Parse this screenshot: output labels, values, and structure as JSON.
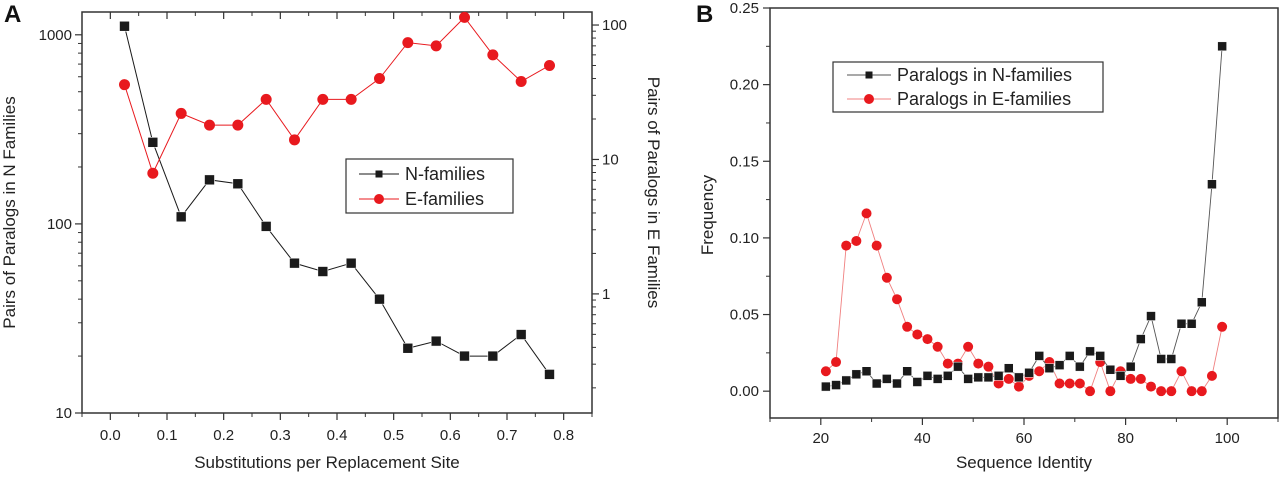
{
  "chart_data": [
    {
      "panel": "A",
      "type": "line",
      "title": "",
      "xlabel": "Substitutions per Replacement Site",
      "ylabel": "Pairs of Paralogs in N Families",
      "y2label": "Pairs of Paralogs in E Families",
      "xlim": [
        -0.05,
        0.85
      ],
      "ylim": [
        10,
        1320
      ],
      "yscale": "log",
      "y2lim": [
        0.13,
        125
      ],
      "y2scale": "log",
      "xticks": [
        "0.0",
        "0.1",
        "0.2",
        "0.3",
        "0.4",
        "0.5",
        "0.6",
        "0.7",
        "0.8"
      ],
      "xtick_values": [
        0.0,
        0.1,
        0.2,
        0.3,
        0.4,
        0.5,
        0.6,
        0.7,
        0.8
      ],
      "yticks": [
        "10",
        "100",
        "1000"
      ],
      "ytick_values": [
        10,
        100,
        1000
      ],
      "y2ticks": [
        "1",
        "10",
        "100"
      ],
      "y2tick_values": [
        1,
        10,
        100
      ],
      "grid": false,
      "legend_position": "center-right",
      "x": [
        0.025,
        0.075,
        0.125,
        0.175,
        0.225,
        0.275,
        0.325,
        0.375,
        0.425,
        0.475,
        0.525,
        0.575,
        0.625,
        0.675,
        0.725,
        0.775
      ],
      "series": [
        {
          "name": "N-families",
          "axis": "left",
          "marker": "square",
          "color": "#1a1a1a",
          "values": [
            1110,
            270,
            109,
            171,
            163,
            97,
            62,
            56,
            62,
            40,
            22,
            24,
            20,
            20,
            26,
            16
          ]
        },
        {
          "name": "E-families",
          "axis": "right",
          "marker": "circle",
          "color": "#e8191e",
          "values": [
            36,
            7.9,
            22,
            18,
            18,
            28,
            14,
            28,
            28,
            40,
            74,
            70,
            114,
            60,
            38,
            50
          ]
        }
      ]
    },
    {
      "panel": "B",
      "type": "line",
      "title": "",
      "xlabel": "Sequence Identity",
      "ylabel": "Frequency",
      "xlim": [
        10,
        110
      ],
      "ylim": [
        -0.0175,
        0.25
      ],
      "xticks": [
        "20",
        "40",
        "60",
        "80",
        "100"
      ],
      "xtick_values": [
        20,
        40,
        60,
        80,
        100
      ],
      "yticks": [
        "0.00",
        "0.05",
        "0.10",
        "0.15",
        "0.20",
        "0.25"
      ],
      "ytick_values": [
        0.0,
        0.05,
        0.1,
        0.15,
        0.2,
        0.25
      ],
      "grid": false,
      "legend_position": "top-left",
      "x": [
        21,
        23,
        25,
        27,
        29,
        31,
        33,
        35,
        37,
        39,
        41,
        43,
        45,
        47,
        49,
        51,
        53,
        55,
        57,
        59,
        61,
        63,
        65,
        67,
        69,
        71,
        73,
        75,
        77,
        79,
        81,
        83,
        85,
        87,
        89,
        91,
        93,
        95,
        97,
        99
      ],
      "series": [
        {
          "name": "Paralogs in N-families",
          "marker": "square",
          "color": "#1a1a1a",
          "values": [
            0.003,
            0.004,
            0.007,
            0.011,
            0.013,
            0.005,
            0.008,
            0.005,
            0.013,
            0.006,
            0.01,
            0.008,
            0.01,
            0.016,
            0.008,
            0.009,
            0.009,
            0.01,
            0.015,
            0.009,
            0.012,
            0.023,
            0.015,
            0.017,
            0.023,
            0.016,
            0.026,
            0.023,
            0.014,
            0.01,
            0.016,
            0.034,
            0.049,
            0.021,
            0.021,
            0.044,
            0.044,
            0.058,
            0.135,
            0.225
          ]
        },
        {
          "name": "Paralogs in E-families",
          "marker": "circle",
          "color": "#e8191e",
          "values": [
            0.013,
            0.019,
            0.095,
            0.098,
            0.116,
            0.095,
            0.074,
            0.06,
            0.042,
            0.037,
            0.034,
            0.029,
            0.018,
            0.018,
            0.029,
            0.018,
            0.016,
            0.005,
            0.008,
            0.003,
            0.01,
            0.013,
            0.019,
            0.005,
            0.005,
            0.005,
            0.0,
            0.019,
            0.0,
            0.013,
            0.008,
            0.008,
            0.003,
            0.0,
            0.0,
            0.013,
            0.0,
            0.0,
            0.01,
            0.042
          ]
        }
      ]
    }
  ]
}
